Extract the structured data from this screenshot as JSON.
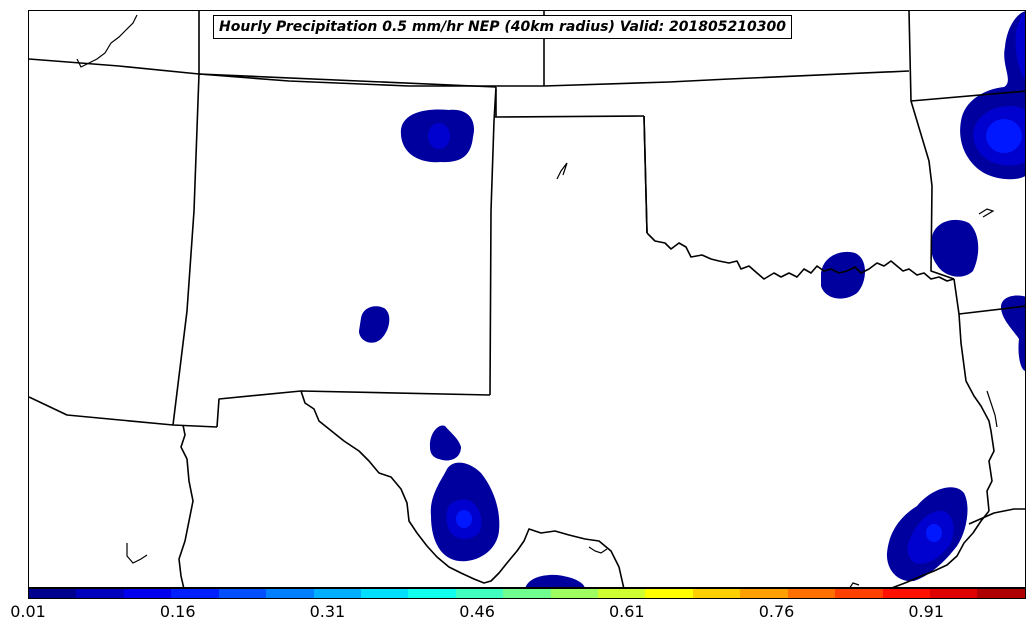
{
  "title": "Hourly Precipitation 0.5 mm/hr NEP (40km radius) Valid: 201805210300",
  "colorbar": {
    "colors": [
      "#00008f",
      "#0000bf",
      "#0000ef",
      "#0020ff",
      "#0050ff",
      "#0080ff",
      "#00afff",
      "#00dfff",
      "#10ffef",
      "#40ffbf",
      "#70ff8f",
      "#9fff60",
      "#cfff30",
      "#ffff00",
      "#ffcf00",
      "#ff9f00",
      "#ff7000",
      "#ff4000",
      "#ff1000",
      "#df0000",
      "#af0000"
    ],
    "tick_labels": [
      "0.01",
      "0.16",
      "0.31",
      "0.46",
      "0.61",
      "0.76",
      "0.91"
    ],
    "tick_values": [
      0.01,
      0.16,
      0.31,
      0.46,
      0.61,
      0.76,
      0.91
    ],
    "range": [
      0.01,
      1.01
    ]
  },
  "legend_colors": {
    "low": "#00009f",
    "mid": "#0000cf",
    "high": "#0018ff"
  }
}
